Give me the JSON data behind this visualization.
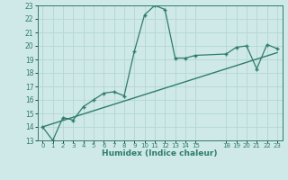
{
  "xlabel": "Humidex (Indice chaleur)",
  "background_color": "#cfe8e8",
  "line_color": "#2e7d6e",
  "grid_color": "#b8d8d8",
  "line1_x": [
    0,
    1,
    2,
    3,
    4,
    5,
    6,
    7,
    8,
    9,
    10,
    11,
    12,
    13,
    14,
    15,
    18,
    19,
    20,
    21,
    22,
    23
  ],
  "line1_y": [
    14.0,
    13.0,
    14.7,
    14.5,
    15.5,
    16.0,
    16.5,
    16.6,
    16.3,
    19.6,
    22.3,
    23.0,
    22.7,
    19.1,
    19.1,
    19.3,
    19.4,
    19.9,
    20.0,
    18.3,
    20.1,
    19.8
  ],
  "line2_x": [
    0,
    23
  ],
  "line2_y": [
    14.0,
    19.5
  ],
  "xlim": [
    -0.5,
    23.5
  ],
  "ylim": [
    13,
    23
  ],
  "yticks": [
    13,
    14,
    15,
    16,
    17,
    18,
    19,
    20,
    21,
    22,
    23
  ],
  "xtick_positions": [
    0,
    1,
    2,
    3,
    4,
    5,
    6,
    7,
    8,
    9,
    10,
    11,
    12,
    13,
    14,
    15,
    18,
    19,
    20,
    21,
    22,
    23
  ],
  "xtick_labels": [
    "0",
    "1",
    "2",
    "3",
    "4",
    "5",
    "6",
    "7",
    "8",
    "9",
    "10",
    "11",
    "12",
    "13",
    "14",
    "15",
    "18",
    "19",
    "20",
    "21",
    "22",
    "23"
  ]
}
